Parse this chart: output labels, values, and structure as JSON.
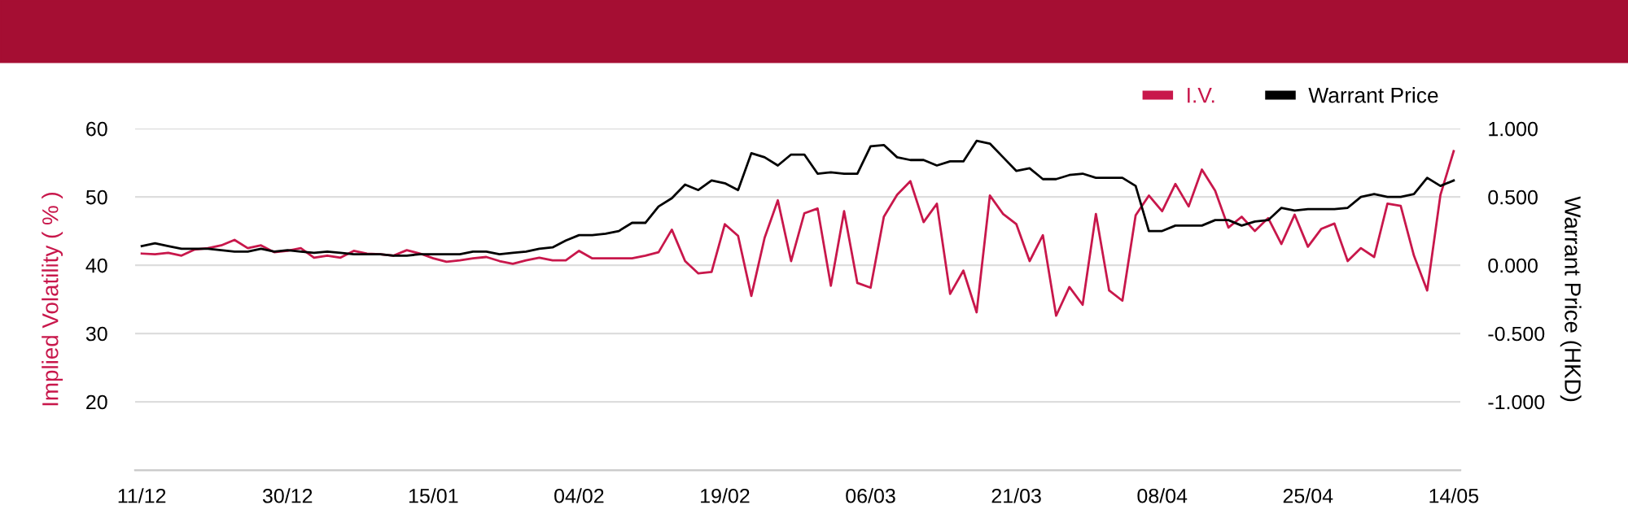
{
  "chart_data": {
    "type": "line",
    "categories": [
      "11/12",
      null,
      null,
      null,
      null,
      null,
      null,
      null,
      null,
      null,
      null,
      "30/12",
      null,
      null,
      null,
      null,
      null,
      null,
      null,
      null,
      null,
      null,
      "15/01",
      null,
      null,
      null,
      null,
      null,
      null,
      null,
      null,
      null,
      null,
      "04/02",
      null,
      null,
      null,
      null,
      null,
      null,
      null,
      null,
      null,
      null,
      "19/02",
      null,
      null,
      null,
      null,
      null,
      null,
      null,
      null,
      null,
      null,
      "06/03",
      null,
      null,
      null,
      null,
      null,
      null,
      null,
      null,
      null,
      null,
      "21/03",
      null,
      null,
      null,
      null,
      null,
      null,
      null,
      null,
      null,
      null,
      "08/04",
      null,
      null,
      null,
      null,
      null,
      null,
      null,
      null,
      null,
      null,
      "25/04",
      null,
      null,
      null,
      null,
      null,
      null,
      null,
      null,
      null,
      null,
      "14/05"
    ],
    "series": [
      {
        "name": "I.V.",
        "color": "#c8174b",
        "values": [
          41.7,
          41.6,
          41.8,
          41.4,
          42.3,
          42.5,
          42.9,
          43.7,
          42.5,
          42.9,
          41.9,
          42.1,
          42.5,
          41.1,
          41.4,
          41.1,
          42.1,
          41.7,
          41.6,
          41.4,
          42.2,
          41.7,
          41.0,
          40.5,
          40.7,
          41.0,
          41.2,
          40.6,
          40.2,
          40.7,
          41.1,
          40.7,
          40.7,
          42.1,
          41.0,
          41.0,
          41.0,
          41.0,
          41.4,
          41.9,
          45.2,
          40.6,
          38.8,
          39.0,
          46.0,
          44.3,
          35.5,
          44.0,
          49.5,
          40.6,
          47.6,
          48.3,
          37.0,
          47.9,
          37.4,
          36.7,
          47.1,
          50.3,
          52.3,
          46.3,
          49.0,
          35.8,
          39.2,
          33.1,
          50.2,
          47.5,
          46.0,
          40.6,
          44.4,
          32.6,
          36.8,
          34.2,
          47.5,
          36.3,
          34.8,
          47.3,
          50.2,
          47.9,
          51.9,
          48.6,
          54.0,
          50.9,
          45.5,
          47.1,
          45.0,
          46.9,
          43.1,
          47.4,
          42.7,
          45.3,
          46.1,
          40.6,
          42.5,
          41.2,
          49.0,
          48.7,
          41.4,
          36.3,
          50.3,
          56.7
        ]
      },
      {
        "name": "Warrant Price",
        "color": "#000000",
        "axis": "y2",
        "values": [
          0.14,
          0.16,
          0.14,
          0.12,
          0.12,
          0.12,
          0.11,
          0.1,
          0.1,
          0.12,
          0.1,
          0.11,
          0.1,
          0.09,
          0.1,
          0.09,
          0.08,
          0.08,
          0.08,
          0.07,
          0.07,
          0.08,
          0.08,
          0.08,
          0.08,
          0.1,
          0.1,
          0.08,
          0.09,
          0.1,
          0.12,
          0.13,
          0.18,
          0.22,
          0.22,
          0.23,
          0.25,
          0.31,
          0.31,
          0.43,
          0.49,
          0.59,
          0.55,
          0.62,
          0.6,
          0.55,
          0.82,
          0.79,
          0.73,
          0.81,
          0.81,
          0.67,
          0.68,
          0.67,
          0.67,
          0.87,
          0.88,
          0.79,
          0.77,
          0.77,
          0.73,
          0.76,
          0.76,
          0.91,
          0.89,
          0.79,
          0.69,
          0.71,
          0.63,
          0.63,
          0.66,
          0.67,
          0.64,
          0.64,
          0.64,
          0.58,
          0.25,
          0.25,
          0.29,
          0.29,
          0.29,
          0.33,
          0.33,
          0.29,
          0.32,
          0.33,
          0.42,
          0.4,
          0.41,
          0.41,
          0.41,
          0.42,
          0.5,
          0.52,
          0.5,
          0.5,
          0.52,
          0.64,
          0.58,
          0.62
        ]
      }
    ],
    "ylabel": "Implied Volatility ( % )",
    "y2label": "Warrant Price (HKD)",
    "ylim": [
      10,
      60
    ],
    "yticks": [
      20,
      30,
      40,
      50,
      60
    ],
    "y2lim": [
      -1.5,
      1.0
    ],
    "y2ticks": [
      {
        "value": -1,
        "label": "-1.000"
      },
      {
        "value": -0.5,
        "label": "-0.500"
      },
      {
        "value": 0,
        "label": "0.000"
      },
      {
        "value": 0.5,
        "label": "0.500"
      },
      {
        "value": 1,
        "label": "1.000"
      }
    ],
    "grid": "y",
    "legend": "top right",
    "marker": "none",
    "line_style": "solid"
  }
}
